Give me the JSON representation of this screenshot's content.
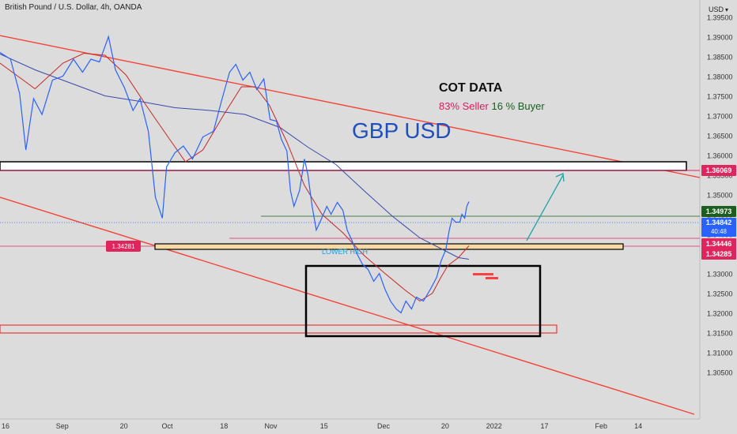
{
  "header": {
    "symbol_title": "British Pound / U.S. Dollar, 4h, OANDA",
    "currency_label": "USD",
    "currency_chevron": "chevron-down-icon"
  },
  "annotations": {
    "cot_title": "COT DATA",
    "cot_seller": "83% Seller",
    "cot_buyer": "16 % Buyer",
    "pair_label": "GBP USD",
    "lower_high": "LOWER HIGH",
    "left_level": "1.34281"
  },
  "price_tags": [
    {
      "value": "1.36069",
      "color": "#e0245e"
    },
    {
      "value": "1.34973",
      "color": "#1b5e20"
    },
    {
      "value": "1.34842",
      "sub": "40:48",
      "color": "#2962ff"
    },
    {
      "value": "1.34446",
      "color": "#e0245e"
    },
    {
      "value": "1.34285",
      "color": "#e0245e"
    }
  ],
  "colors": {
    "price_line": "#2962ff",
    "ma_fast": "#c62828",
    "ma_slow": "#3949ab",
    "trend_line": "#f44336",
    "arrow": "#1fa3a8",
    "background": "#dcdcdc"
  },
  "chart_data": {
    "type": "line",
    "title": "British Pound / U.S. Dollar, 4h, OANDA",
    "ylim": [
      1.3,
      1.4
    ],
    "y_ticks": [
      "1.39500",
      "1.39000",
      "1.38500",
      "1.38000",
      "1.37500",
      "1.37000",
      "1.36500",
      "1.36000",
      "1.35500",
      "1.35000",
      "1.34500",
      "1.34000",
      "1.33500",
      "1.33000",
      "1.32500",
      "1.32000",
      "1.31500",
      "1.31000",
      "1.30500"
    ],
    "x_ticks": [
      {
        "label": "16",
        "t": 0
      },
      {
        "label": "Sep",
        "t": 0.089
      },
      {
        "label": "20",
        "t": 0.177
      },
      {
        "label": "Oct",
        "t": 0.239
      },
      {
        "label": "18",
        "t": 0.32
      },
      {
        "label": "Nov",
        "t": 0.387
      },
      {
        "label": "15",
        "t": 0.463
      },
      {
        "label": "Dec",
        "t": 0.548
      },
      {
        "label": "20",
        "t": 0.636
      },
      {
        "label": "2022",
        "t": 0.706
      },
      {
        "label": "17",
        "t": 0.778
      },
      {
        "label": "Feb",
        "t": 0.859
      },
      {
        "label": "14",
        "t": 0.912
      }
    ],
    "series": [
      {
        "name": "",
        "role": "price",
        "color": "#2962ff",
        "points": [
          [
            0,
            1.3862
          ],
          [
            0.015,
            1.3845
          ],
          [
            0.028,
            1.3758
          ],
          [
            0.037,
            1.3615
          ],
          [
            0.048,
            1.3745
          ],
          [
            0.06,
            1.3705
          ],
          [
            0.075,
            1.3792
          ],
          [
            0.09,
            1.3802
          ],
          [
            0.105,
            1.3845
          ],
          [
            0.118,
            1.3812
          ],
          [
            0.13,
            1.3845
          ],
          [
            0.142,
            1.3838
          ],
          [
            0.155,
            1.3902
          ],
          [
            0.165,
            1.3818
          ],
          [
            0.178,
            1.3772
          ],
          [
            0.19,
            1.3715
          ],
          [
            0.2,
            1.3745
          ],
          [
            0.212,
            1.3662
          ],
          [
            0.222,
            1.3495
          ],
          [
            0.232,
            1.3442
          ],
          [
            0.238,
            1.3572
          ],
          [
            0.25,
            1.3608
          ],
          [
            0.262,
            1.3625
          ],
          [
            0.275,
            1.3592
          ],
          [
            0.29,
            1.3648
          ],
          [
            0.305,
            1.3662
          ],
          [
            0.317,
            1.3742
          ],
          [
            0.328,
            1.3812
          ],
          [
            0.337,
            1.3832
          ],
          [
            0.347,
            1.3792
          ],
          [
            0.357,
            1.3812
          ],
          [
            0.367,
            1.3768
          ],
          [
            0.377,
            1.3795
          ],
          [
            0.386,
            1.3692
          ],
          [
            0.395,
            1.3688
          ],
          [
            0.402,
            1.3642
          ],
          [
            0.41,
            1.3612
          ],
          [
            0.415,
            1.3512
          ],
          [
            0.42,
            1.3472
          ],
          [
            0.428,
            1.3512
          ],
          [
            0.435,
            1.3592
          ],
          [
            0.44,
            1.3552
          ],
          [
            0.446,
            1.3472
          ],
          [
            0.452,
            1.3412
          ],
          [
            0.458,
            1.3435
          ],
          [
            0.467,
            1.3472
          ],
          [
            0.473,
            1.3452
          ],
          [
            0.482,
            1.3482
          ],
          [
            0.49,
            1.3462
          ],
          [
            0.496,
            1.3412
          ],
          [
            0.503,
            1.3385
          ],
          [
            0.51,
            1.3352
          ],
          [
            0.518,
            1.3325
          ],
          [
            0.526,
            1.3312
          ],
          [
            0.534,
            1.3282
          ],
          [
            0.542,
            1.3302
          ],
          [
            0.55,
            1.3262
          ],
          [
            0.558,
            1.3232
          ],
          [
            0.566,
            1.3212
          ],
          [
            0.573,
            1.3202
          ],
          [
            0.58,
            1.3232
          ],
          [
            0.588,
            1.3212
          ],
          [
            0.595,
            1.3242
          ],
          [
            0.605,
            1.3232
          ],
          [
            0.615,
            1.3262
          ],
          [
            0.624,
            1.3292
          ],
          [
            0.63,
            1.3332
          ],
          [
            0.637,
            1.3362
          ],
          [
            0.642,
            1.3412
          ],
          [
            0.646,
            1.3442
          ],
          [
            0.651,
            1.3432
          ],
          [
            0.657,
            1.3432
          ],
          [
            0.66,
            1.3452
          ],
          [
            0.664,
            1.3442
          ],
          [
            0.667,
            1.3472
          ],
          [
            0.67,
            1.3484
          ]
        ]
      },
      {
        "name": "",
        "role": "ma-fast",
        "color": "#c62828",
        "points": [
          [
            0,
            1.3835
          ],
          [
            0.05,
            1.377
          ],
          [
            0.09,
            1.3835
          ],
          [
            0.12,
            1.386
          ],
          [
            0.15,
            1.3855
          ],
          [
            0.18,
            1.3805
          ],
          [
            0.21,
            1.3725
          ],
          [
            0.24,
            1.3648
          ],
          [
            0.265,
            1.3585
          ],
          [
            0.29,
            1.3615
          ],
          [
            0.32,
            1.3705
          ],
          [
            0.345,
            1.3775
          ],
          [
            0.365,
            1.3775
          ],
          [
            0.385,
            1.3728
          ],
          [
            0.41,
            1.3635
          ],
          [
            0.435,
            1.3525
          ],
          [
            0.46,
            1.3452
          ],
          [
            0.49,
            1.3405
          ],
          [
            0.52,
            1.3348
          ],
          [
            0.55,
            1.3302
          ],
          [
            0.58,
            1.3258
          ],
          [
            0.6,
            1.3232
          ],
          [
            0.618,
            1.3252
          ],
          [
            0.63,
            1.3292
          ],
          [
            0.64,
            1.3322
          ],
          [
            0.655,
            1.3342
          ],
          [
            0.67,
            1.3372
          ]
        ]
      },
      {
        "name": "",
        "role": "ma-slow",
        "color": "#3949ab",
        "points": [
          [
            0,
            1.3858
          ],
          [
            0.05,
            1.3818
          ],
          [
            0.1,
            1.3785
          ],
          [
            0.15,
            1.3752
          ],
          [
            0.2,
            1.3738
          ],
          [
            0.25,
            1.3722
          ],
          [
            0.3,
            1.3715
          ],
          [
            0.35,
            1.3705
          ],
          [
            0.4,
            1.3672
          ],
          [
            0.44,
            1.3622
          ],
          [
            0.48,
            1.3578
          ],
          [
            0.52,
            1.3512
          ],
          [
            0.56,
            1.3448
          ],
          [
            0.6,
            1.3392
          ],
          [
            0.63,
            1.3365
          ],
          [
            0.655,
            1.3342
          ],
          [
            0.67,
            1.3338
          ]
        ]
      }
    ],
    "levels": [
      {
        "value": 1.36069,
        "label": "1.36069"
      },
      {
        "value": 1.34973,
        "label": "1.34973"
      },
      {
        "value": 1.34842,
        "label": "1.34842"
      },
      {
        "value": 1.34446,
        "label": "1.34446"
      },
      {
        "value": 1.34285,
        "label": "1.34285"
      }
    ],
    "grid": false,
    "legend": "none"
  }
}
